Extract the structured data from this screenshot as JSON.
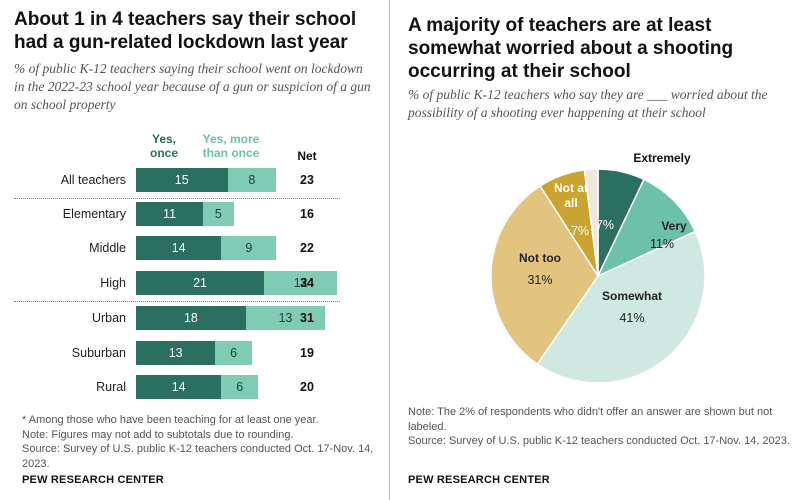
{
  "left": {
    "title": "About 1 in 4 teachers say their school had a gun-related lockdown last year",
    "subtitle": "% of public K-12 teachers saying their school went on lockdown in the 2022-23 school year because of a gun or suspicion of a gun on school property",
    "notes": [
      "* Among those who have been teaching for at least one year.",
      "Note: Figures may not add to subtotals due to rounding.",
      "Source: Survey of U.S. public K-12 teachers conducted Oct. 17-Nov. 14, 2023."
    ],
    "brand": "PEW RESEARCH CENTER"
  },
  "right": {
    "title": "A majority of teachers are at least somewhat worried about a shooting occurring at their school",
    "subtitle": "% of public K-12 teachers who say they are ___ worried about the possibility of a shooting ever happening at their school",
    "notes": [
      "Note: The 2% of respondents who didn't offer an answer are shown but not labeled.",
      "Source: Survey of U.S. public K-12 teachers conducted Oct. 17-Nov. 14, 2023."
    ],
    "brand": "PEW RESEARCH CENTER"
  },
  "chart_data": [
    {
      "type": "bar",
      "stacked": true,
      "orientation": "horizontal",
      "legend": [
        "Yes, once",
        "Yes, more than once"
      ],
      "net_label": "Net",
      "categories": [
        "All teachers",
        "Elementary",
        "Middle",
        "High",
        "Urban",
        "Suburban",
        "Rural"
      ],
      "series": [
        {
          "name": "Yes, once",
          "values": [
            15,
            11,
            14,
            21,
            18,
            13,
            14
          ]
        },
        {
          "name": "Yes, more than once",
          "values": [
            8,
            5,
            9,
            12,
            13,
            6,
            6
          ]
        }
      ],
      "net": [
        23,
        16,
        22,
        34,
        31,
        19,
        20
      ],
      "group_separators_after": [
        "All teachers",
        "High"
      ],
      "colors": {
        "once": "#2a6f5f",
        "more": "#7fcbb3"
      }
    },
    {
      "type": "pie",
      "slices": [
        {
          "label": "Extremely",
          "value": 7,
          "value_label": "7%",
          "color": "#2a6f5f"
        },
        {
          "label": "Very",
          "value": 11,
          "value_label": "11%",
          "color": "#6cc1a8"
        },
        {
          "label": "Somewhat",
          "value": 41,
          "value_label": "41%",
          "color": "#cfe8e2"
        },
        {
          "label": "Not too",
          "value": 31,
          "value_label": "31%",
          "color": "#e3c47f"
        },
        {
          "label": "Not at all",
          "value": 7,
          "value_label": "7%",
          "color": "#c9a430"
        },
        {
          "label": "",
          "value": 2,
          "value_label": "",
          "color": "#ece9dc"
        }
      ]
    }
  ]
}
